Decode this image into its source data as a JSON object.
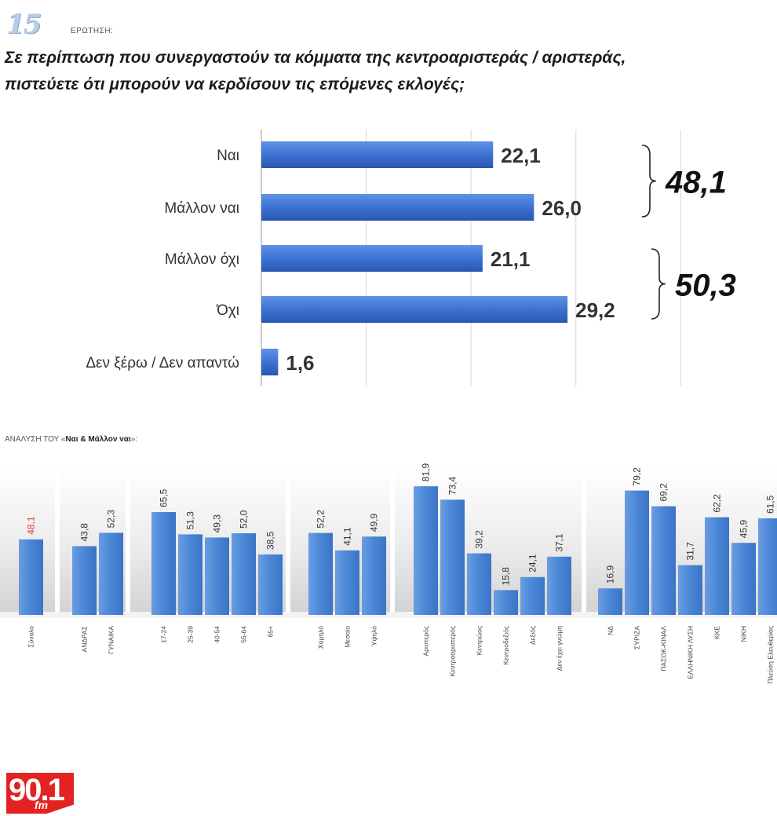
{
  "header": {
    "question_number": "15",
    "question_word": "ΕΡΩΤΗΣΗ:",
    "question_line1": "Σε περίπτωση που συνεργαστούν τα κόμματα της κεντροαριστεράς / αριστεράς,",
    "question_line2": "πιστεύετε ότι μπορούν να κερδίσουν τις επόμενες εκλογές;"
  },
  "chart_data": [
    {
      "type": "bar",
      "orientation": "horizontal",
      "categories": [
        "Ναι",
        "Μάλλον ναι",
        "Μάλλον όχι",
        "Όχι",
        "Δεν ξέρω / Δεν απαντώ"
      ],
      "values": [
        22.1,
        26.0,
        21.1,
        29.2,
        1.6
      ],
      "value_labels": [
        "22,1",
        "26,0",
        "21,1",
        "29,2",
        "1,6"
      ],
      "xlim": [
        0,
        40
      ],
      "grid": true,
      "color": "#3a6fd1",
      "groups": [
        {
          "label": "48,1",
          "from": 0,
          "to": 1
        },
        {
          "label": "50,3",
          "from": 2,
          "to": 3
        }
      ]
    },
    {
      "type": "bar",
      "orientation": "vertical",
      "title_prefix": "ΑΝΑΛΥΣΗ ΤΟΥ «",
      "title_bold": "Ναι & Μάλλον ναι",
      "title_suffix": "»:",
      "ylim": [
        0,
        100
      ],
      "color": "#4a86d6",
      "highlight_color": "#e03a3a",
      "groups": [
        {
          "bars": [
            {
              "label": "Σύνολο",
              "value": 48.1,
              "text": "48,1",
              "highlight": true
            }
          ]
        },
        {
          "bars": [
            {
              "label": "ΑΝΔΡΑΣ",
              "value": 43.8,
              "text": "43,8"
            },
            {
              "label": "ΓΥΝΑΙΚΑ",
              "value": 52.3,
              "text": "52,3"
            }
          ]
        },
        {
          "bars": [
            {
              "label": "17-24",
              "value": 65.5,
              "text": "65,5"
            },
            {
              "label": "25-39",
              "value": 51.3,
              "text": "51,3"
            },
            {
              "label": "40-54",
              "value": 49.3,
              "text": "49,3"
            },
            {
              "label": "55-64",
              "value": 52.0,
              "text": "52,0"
            },
            {
              "label": "65+",
              "value": 38.5,
              "text": "38,5"
            }
          ]
        },
        {
          "bars": [
            {
              "label": "Χαμηλό",
              "value": 52.2,
              "text": "52,2"
            },
            {
              "label": "Μεσαίο",
              "value": 41.1,
              "text": "41,1"
            },
            {
              "label": "Υψηλό",
              "value": 49.9,
              "text": "49,9"
            }
          ]
        },
        {
          "bars": [
            {
              "label": "Αριστερός",
              "value": 81.9,
              "text": "81,9"
            },
            {
              "label": "Κεντροαριστερός",
              "value": 73.4,
              "text": "73,4"
            },
            {
              "label": "Κεντρώος",
              "value": 39.2,
              "text": "39,2"
            },
            {
              "label": "Κεντροδεξιός",
              "value": 15.8,
              "text": "15,8"
            },
            {
              "label": "Δεξιός",
              "value": 24.1,
              "text": "24,1"
            },
            {
              "label": "Δεν έχει γνώμη",
              "value": 37.1,
              "text": "37,1"
            }
          ]
        },
        {
          "bars": [
            {
              "label": "ΝΔ",
              "value": 16.9,
              "text": "16,9"
            },
            {
              "label": "ΣΥΡΙΖΑ",
              "value": 79.2,
              "text": "79,2"
            },
            {
              "label": "ΠΑΣΟΚ-ΚΙΝΑΛ",
              "value": 69.2,
              "text": "69,2"
            },
            {
              "label": "ΕΛΛΗΝΙΚΗ ΛΥΣΗ",
              "value": 31.7,
              "text": "31,7"
            },
            {
              "label": "ΚΚΕ",
              "value": 62.2,
              "text": "62,2"
            },
            {
              "label": "ΝΙΚΗ",
              "value": 45.9,
              "text": "45,9"
            },
            {
              "label": "Πλεύση Ελευθερίας",
              "value": 61.5,
              "text": "61,5"
            }
          ]
        }
      ]
    }
  ],
  "logo": {
    "number": "90.1",
    "suffix": "fm"
  }
}
